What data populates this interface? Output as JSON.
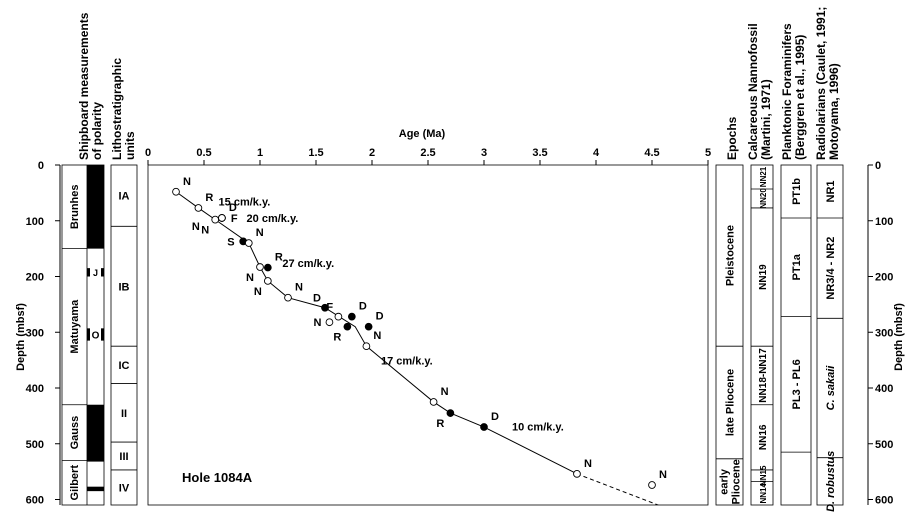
{
  "chart_data": {
    "type": "scatter",
    "xlabel": "Age (Ma)",
    "ylabel": "Depth (mbsf)",
    "xlim": [
      0,
      5
    ],
    "ylim": [
      600,
      0
    ],
    "x_ticks": [
      "0",
      "0.5",
      "1",
      "1.5",
      "2",
      "2.5",
      "3",
      "3.5",
      "4",
      "4.5",
      "5"
    ],
    "y_ticks": [
      "0",
      "100",
      "200",
      "300",
      "400",
      "500",
      "600"
    ],
    "hole_label": "Hole 1084A",
    "age_depth_line": [
      {
        "x": 0.25,
        "y": 48
      },
      {
        "x": 0.45,
        "y": 77
      },
      {
        "x": 0.6,
        "y": 98
      },
      {
        "x": 0.9,
        "y": 140
      },
      {
        "x": 1.0,
        "y": 183
      },
      {
        "x": 1.07,
        "y": 208
      },
      {
        "x": 1.25,
        "y": 238
      },
      {
        "x": 1.58,
        "y": 256
      },
      {
        "x": 1.85,
        "y": 290
      },
      {
        "x": 1.95,
        "y": 325
      },
      {
        "x": 2.55,
        "y": 425
      },
      {
        "x": 2.7,
        "y": 445
      },
      {
        "x": 3.0,
        "y": 470
      },
      {
        "x": 3.83,
        "y": 554
      }
    ],
    "age_depth_line_dashed": [
      {
        "x": 3.83,
        "y": 554
      },
      {
        "x": 4.75,
        "y": 625
      }
    ],
    "points": [
      {
        "x": 0.25,
        "y": 48,
        "fill": "open",
        "label": "N",
        "pos": "ur"
      },
      {
        "x": 0.45,
        "y": 77,
        "fill": "open",
        "label": "R",
        "pos": "ur"
      },
      {
        "x": 0.6,
        "y": 98,
        "fill": "open",
        "label": "N",
        "pos": "dl"
      },
      {
        "x": 0.66,
        "y": 95,
        "fill": "open",
        "label": "D",
        "pos": "ur"
      },
      {
        "x": 0.66,
        "y": 95,
        "fill": "open",
        "label": "F",
        "pos": "r"
      },
      {
        "x": 0.66,
        "y": 95,
        "fill": "open",
        "label": "N",
        "pos": "dl2"
      },
      {
        "x": 0.85,
        "y": 137,
        "fill": "filled",
        "label": "S",
        "pos": "l"
      },
      {
        "x": 0.9,
        "y": 140,
        "fill": "open",
        "label": "N",
        "pos": "ur"
      },
      {
        "x": 1.0,
        "y": 183,
        "fill": "open",
        "label": "N",
        "pos": "dl"
      },
      {
        "x": 1.07,
        "y": 184,
        "fill": "filled",
        "label": "R",
        "pos": "ur"
      },
      {
        "x": 1.07,
        "y": 208,
        "fill": "open",
        "label": "N",
        "pos": "dl"
      },
      {
        "x": 1.25,
        "y": 238,
        "fill": "open",
        "label": "N",
        "pos": "ur"
      },
      {
        "x": 1.58,
        "y": 256,
        "fill": "filled",
        "label": "D",
        "pos": "ul"
      },
      {
        "x": 1.7,
        "y": 272,
        "fill": "open",
        "label": "F",
        "pos": "ul"
      },
      {
        "x": 1.62,
        "y": 282,
        "fill": "open",
        "label": "N",
        "pos": "l"
      },
      {
        "x": 1.82,
        "y": 272,
        "fill": "filled",
        "label": "D",
        "pos": "ur"
      },
      {
        "x": 1.78,
        "y": 290,
        "fill": "filled",
        "label": "R",
        "pos": "dl"
      },
      {
        "x": 1.97,
        "y": 290,
        "fill": "filled",
        "label": "D",
        "pos": "ur"
      },
      {
        "x": 1.95,
        "y": 325,
        "fill": "open",
        "label": "N",
        "pos": "ur"
      },
      {
        "x": 2.55,
        "y": 425,
        "fill": "open",
        "label": "N",
        "pos": "ur"
      },
      {
        "x": 2.7,
        "y": 445,
        "fill": "filled",
        "label": "R",
        "pos": "dl"
      },
      {
        "x": 3.0,
        "y": 470,
        "fill": "filled",
        "label": "D",
        "pos": "ur"
      },
      {
        "x": 3.83,
        "y": 554,
        "fill": "open",
        "label": "N",
        "pos": "ur"
      },
      {
        "x": 4.5,
        "y": 574,
        "fill": "open",
        "label": "N",
        "pos": "ur"
      }
    ],
    "rates": [
      {
        "text": "15 cm/k.y.",
        "x": 0.63,
        "y": 73
      },
      {
        "text": "20 cm/k.y.",
        "x": 0.88,
        "y": 102
      },
      {
        "text": "27 cm/k.y.",
        "x": 1.2,
        "y": 183
      },
      {
        "text": "17 cm/k.y.",
        "x": 2.08,
        "y": 358
      },
      {
        "text": "10 cm/k.y.",
        "x": 3.25,
        "y": 476
      }
    ]
  },
  "columns": {
    "polarity_title": [
      "Shipboard measurements",
      "of polarity"
    ],
    "litho_title": [
      "Lithostratigraphic",
      "units"
    ],
    "epochs_title": "Epochs",
    "nanno_title": [
      "Calcareous Nannofossil",
      "(Martini, 1971)"
    ],
    "foram_title": [
      "Planktonic Foraminifers",
      "(Berggren et al., 1995)"
    ],
    "radio_title": [
      "Radiolarians (Caulet, 1991;",
      "Motoyama, 1996)"
    ]
  },
  "chrons": [
    {
      "label": "Brunhes",
      "top": 0,
      "bottom": 150
    },
    {
      "label": "Matuyama",
      "top": 150,
      "bottom": 430
    },
    {
      "label": "Gauss",
      "top": 430,
      "bottom": 530
    },
    {
      "label": "Gilbert",
      "top": 530,
      "bottom": 610
    }
  ],
  "polarity_bands": [
    {
      "top": 0,
      "bottom": 150,
      "kind": "normal"
    },
    {
      "top": 185,
      "bottom": 200,
      "kind": "normal-sub"
    },
    {
      "top": 293,
      "bottom": 315,
      "kind": "normal-sub"
    },
    {
      "top": 430,
      "bottom": 532,
      "kind": "normal"
    },
    {
      "top": 577,
      "bottom": 585,
      "kind": "normal"
    }
  ],
  "polarity_markers": {
    "j": "J",
    "o": "O"
  },
  "litho_units": [
    {
      "label": "IA",
      "top": 0,
      "bottom": 110
    },
    {
      "label": "IB",
      "top": 110,
      "bottom": 325
    },
    {
      "label": "IC",
      "top": 325,
      "bottom": 392
    },
    {
      "label": "II",
      "top": 392,
      "bottom": 497
    },
    {
      "label": "III",
      "top": 497,
      "bottom": 547
    },
    {
      "label": "IV",
      "top": 547,
      "bottom": 610
    }
  ],
  "epochs": [
    {
      "label": "Pleistocene",
      "top": 0,
      "bottom": 325
    },
    {
      "label": "late Pliocene",
      "top": 325,
      "bottom": 527
    },
    {
      "label": [
        "early",
        "Pliocene"
      ],
      "top": 527,
      "bottom": 610
    }
  ],
  "nanno_zones": [
    {
      "label": "NN21",
      "top": 0,
      "bottom": 43
    },
    {
      "label": "NN20",
      "top": 43,
      "bottom": 77
    },
    {
      "label": "NN19",
      "top": 77,
      "bottom": 325
    },
    {
      "label": "NN18-NN17",
      "top": 325,
      "bottom": 430
    },
    {
      "label": "NN16",
      "top": 430,
      "bottom": 547
    },
    {
      "label": "NN15",
      "top": 547,
      "bottom": 568
    },
    {
      "label": "NN14",
      "top": 568,
      "bottom": 610
    }
  ],
  "foram_zones": [
    {
      "label": "PT1b",
      "top": 0,
      "bottom": 95
    },
    {
      "label": "PT1a",
      "top": 95,
      "bottom": 272
    },
    {
      "label": "PL3 - PL6",
      "top": 272,
      "bottom": 515
    },
    {
      "label": "",
      "top": 515,
      "bottom": 610
    }
  ],
  "radio_zones": [
    {
      "label": "NR1",
      "top": 0,
      "bottom": 95
    },
    {
      "label": "NR3/4 - NR2",
      "top": 95,
      "bottom": 275
    },
    {
      "label": "C. sakaii",
      "top": 275,
      "bottom": 525
    },
    {
      "label": "D. robustus",
      "top": 525,
      "bottom": 610
    }
  ]
}
